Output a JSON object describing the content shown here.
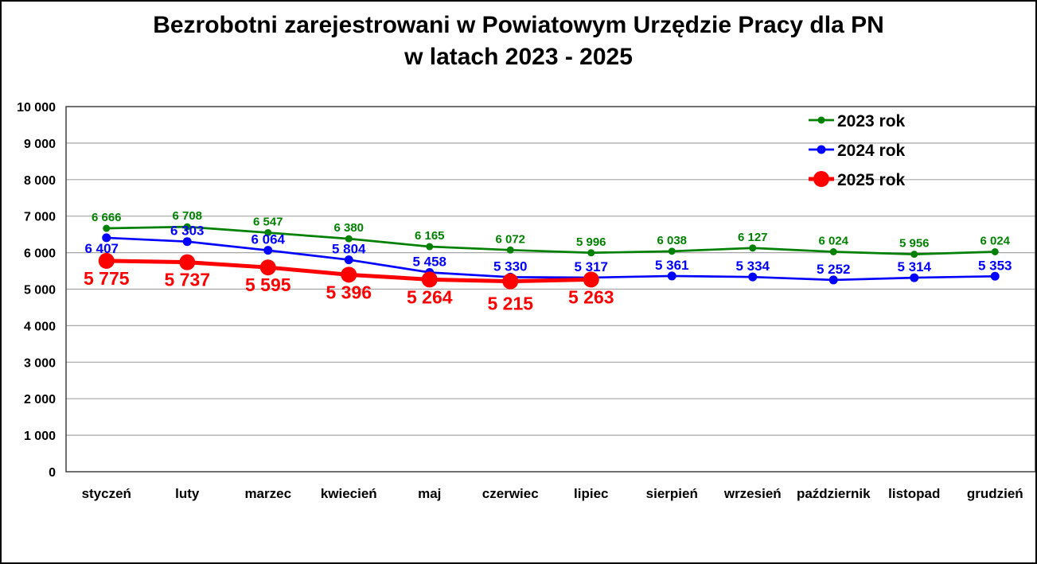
{
  "title": {
    "line1": "Bezrobotni zarejestrowani w Powiatowym Urzędzie Pracy dla PN",
    "line2": "w latach 2023 - 2025"
  },
  "chart_data": {
    "type": "line",
    "title": "Bezrobotni zarejestrowani w Powiatowym Urzędzie Pracy dla PN w latach 2023 - 2025",
    "categories": [
      "styczeń",
      "luty",
      "marzec",
      "kwiecień",
      "maj",
      "czerwiec",
      "lipiec",
      "sierpień",
      "wrzesień",
      "październik",
      "listopad",
      "grudzień"
    ],
    "series": [
      {
        "name": "2023 rok",
        "color": "#008000",
        "values": [
          6666,
          6708,
          6547,
          6380,
          6165,
          6072,
          5996,
          6038,
          6127,
          6024,
          5956,
          6024
        ]
      },
      {
        "name": "2024 rok",
        "color": "#0000FF",
        "values": [
          6407,
          6303,
          6064,
          5804,
          5458,
          5330,
          5317,
          5361,
          5334,
          5252,
          5314,
          5353
        ]
      },
      {
        "name": "2025 rok",
        "color": "#FF0000",
        "values": [
          5775,
          5737,
          5595,
          5396,
          5264,
          5215,
          5263
        ]
      }
    ],
    "xlabel": "",
    "ylabel": "",
    "ylim": [
      0,
      10000
    ],
    "ytick_step": 1000,
    "ytick_labels": [
      "0",
      "1 000",
      "2 000",
      "3 000",
      "4 000",
      "5 000",
      "6 000",
      "7 000",
      "8 000",
      "9 000",
      "10 000"
    ],
    "grid": "horizontal",
    "legend_position": "top-right",
    "legend": [
      "2023 rok",
      "2024 rok",
      "2025 rok"
    ],
    "data_labels": true,
    "number_format": "space-thousands"
  },
  "colors": {
    "background": "#FFFFFF",
    "grid": "#A6A6A6",
    "plot_border": "#404040",
    "text": "#000000",
    "series_2023": "#008000",
    "series_2024": "#0000FF",
    "series_2025": "#FF0000"
  }
}
